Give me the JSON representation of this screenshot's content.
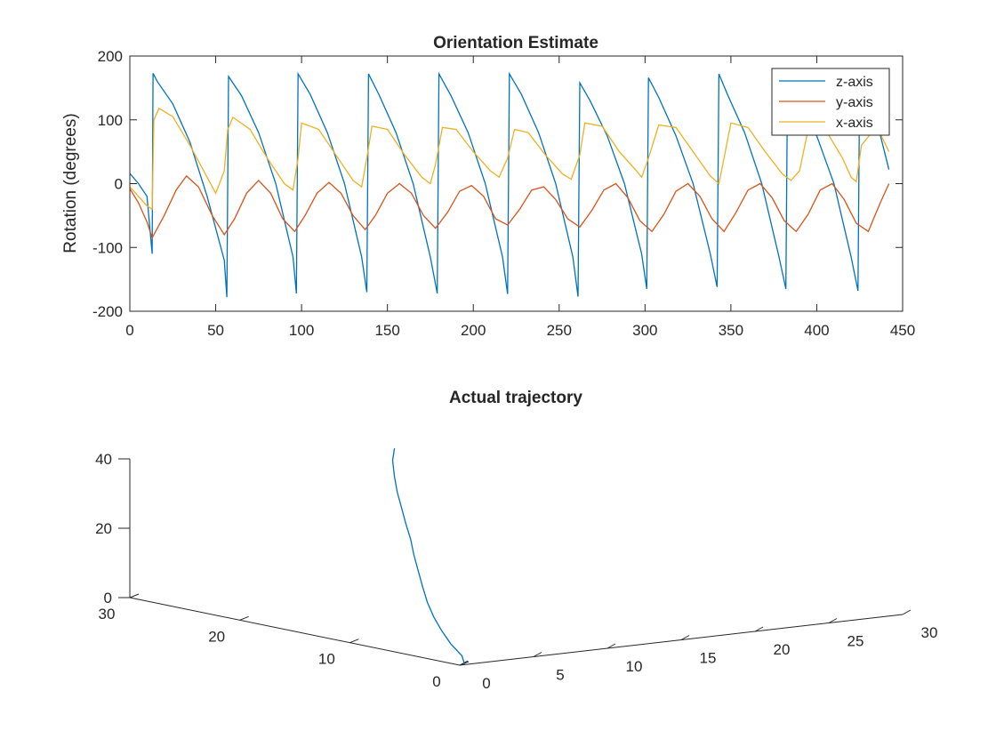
{
  "chart_data": [
    {
      "type": "line",
      "title": "Orientation Estimate",
      "xlabel": "",
      "ylabel": "Rotation (degrees)",
      "xlim": [
        0,
        450
      ],
      "ylim": [
        -200,
        200
      ],
      "xticks": [
        0,
        50,
        100,
        150,
        200,
        250,
        300,
        350,
        400,
        450
      ],
      "yticks": [
        -200,
        -100,
        0,
        100,
        200
      ],
      "xtick_labels": [
        "0",
        "50",
        "100",
        "150",
        "200",
        "250",
        "300",
        "350",
        "400",
        "450"
      ],
      "ytick_labels": [
        "-200",
        "-100",
        "0",
        "100",
        "200"
      ],
      "grid": false,
      "legend_position": "top-right",
      "series": [
        {
          "name": "z-axis",
          "color": "#0072BD",
          "x": [
            0,
            5,
            10,
            13,
            13.5,
            16,
            25,
            35,
            45,
            55,
            56.5,
            57.5,
            65,
            75,
            85,
            95,
            97,
            98,
            105,
            115,
            125,
            135,
            138,
            139,
            145,
            155,
            165,
            175,
            179,
            180,
            187,
            197,
            207,
            217,
            220,
            221,
            228,
            238,
            248,
            258,
            261,
            262,
            268,
            278,
            288,
            298,
            301,
            302,
            308,
            318,
            328,
            338,
            342,
            343,
            348,
            358,
            368,
            378,
            382,
            383,
            390,
            400,
            410,
            420,
            424,
            425,
            432,
            442
          ],
          "y": [
            16,
            0,
            -20,
            -110,
            173,
            160,
            125,
            65,
            -20,
            -120,
            -178,
            168,
            138,
            80,
            0,
            -115,
            -172,
            172,
            140,
            80,
            0,
            -115,
            -170,
            172,
            140,
            80,
            0,
            -115,
            -172,
            172,
            138,
            80,
            0,
            -115,
            -173,
            172,
            140,
            80,
            0,
            -115,
            -177,
            158,
            130,
            75,
            0,
            -110,
            -165,
            166,
            135,
            75,
            0,
            -110,
            -162,
            172,
            140,
            80,
            0,
            -115,
            -165,
            165,
            135,
            75,
            0,
            -115,
            -168,
            165,
            130,
            22
          ]
        },
        {
          "name": "y-axis",
          "color": "#D95319",
          "x": [
            0,
            5,
            10,
            13,
            20,
            27,
            33,
            40,
            48,
            55,
            61,
            68,
            75,
            82,
            89,
            96,
            102,
            109,
            116,
            123,
            130,
            137,
            143,
            150,
            157,
            164,
            171,
            178,
            185,
            192,
            199,
            206,
            213,
            220,
            227,
            234,
            241,
            248,
            255,
            262,
            269,
            276,
            283,
            290,
            297,
            304,
            311,
            318,
            325,
            332,
            339,
            346,
            353,
            360,
            367,
            374,
            381,
            388,
            395,
            402,
            409,
            416,
            423,
            430,
            437,
            442
          ],
          "y": [
            -8,
            -30,
            -60,
            -85,
            -50,
            -10,
            12,
            -5,
            -50,
            -80,
            -55,
            -15,
            5,
            -15,
            -55,
            -75,
            -50,
            -15,
            2,
            -15,
            -50,
            -72,
            -50,
            -15,
            0,
            -15,
            -50,
            -70,
            -45,
            -12,
            -3,
            -20,
            -55,
            -65,
            -40,
            -10,
            -5,
            -25,
            -55,
            -68,
            -42,
            -10,
            0,
            -22,
            -58,
            -75,
            -48,
            -12,
            0,
            -20,
            -55,
            -75,
            -45,
            -10,
            0,
            -22,
            -58,
            -75,
            -48,
            -10,
            0,
            -25,
            -62,
            -75,
            -30,
            0
          ]
        },
        {
          "name": "x-axis",
          "color": "#EDB120",
          "x": [
            0,
            5,
            10,
            13,
            14,
            17,
            25,
            35,
            45,
            50,
            55,
            57,
            60,
            70,
            80,
            90,
            95,
            98,
            100,
            110,
            120,
            130,
            135,
            138,
            141,
            150,
            160,
            170,
            175,
            178,
            182,
            190,
            200,
            210,
            215,
            220,
            224,
            232,
            242,
            252,
            257,
            262,
            265,
            275,
            285,
            295,
            298,
            302,
            308,
            318,
            328,
            338,
            343,
            346,
            350,
            360,
            370,
            380,
            385,
            390,
            395,
            405,
            415,
            420,
            423,
            426,
            435,
            442
          ],
          "y": [
            -5,
            -20,
            -35,
            -40,
            100,
            118,
            105,
            60,
            10,
            -15,
            20,
            85,
            104,
            85,
            40,
            0,
            -10,
            40,
            95,
            85,
            45,
            5,
            -5,
            40,
            90,
            85,
            45,
            10,
            0,
            30,
            88,
            85,
            50,
            20,
            10,
            40,
            85,
            80,
            45,
            15,
            7,
            45,
            95,
            90,
            50,
            20,
            10,
            40,
            92,
            88,
            50,
            12,
            0,
            40,
            95,
            88,
            50,
            15,
            5,
            20,
            85,
            85,
            40,
            10,
            3,
            60,
            90,
            50
          ]
        }
      ]
    },
    {
      "type": "line",
      "title": "Actual trajectory",
      "xlabel": "",
      "ylabel": "",
      "xlim": [
        0,
        30
      ],
      "ylim": [
        0,
        30
      ],
      "zlim": [
        0,
        40
      ],
      "xtick_labels": [
        "0",
        "5",
        "10",
        "15",
        "20",
        "25",
        "30"
      ],
      "ytick_labels": [
        "0",
        "10",
        "20",
        "30"
      ],
      "ztick_labels": [
        "0",
        "20",
        "40"
      ],
      "grid": false,
      "series": [
        {
          "color": "#0072BD",
          "x": [
            0.4,
            0.6,
            0.5,
            0.7,
            1.0,
            1.3,
            1.8,
            2.4,
            3.0,
            3.6,
            4.1,
            4.7,
            5.3,
            6.0,
            6.7,
            7.5
          ],
          "y": [
            0.1,
            0.6,
            1.5,
            2.6,
            3.7,
            4.7,
            5.8,
            7.0,
            8.2,
            9.3,
            10.4,
            11.6,
            12.8,
            14.0,
            15.1,
            16.0
          ],
          "z": [
            0.0,
            2.0,
            5.0,
            8.0,
            11.0,
            14.5,
            18.0,
            21.5,
            25.0,
            28.5,
            32.0,
            35.5,
            39.0,
            42.5,
            46.0,
            48.5
          ]
        }
      ]
    }
  ]
}
